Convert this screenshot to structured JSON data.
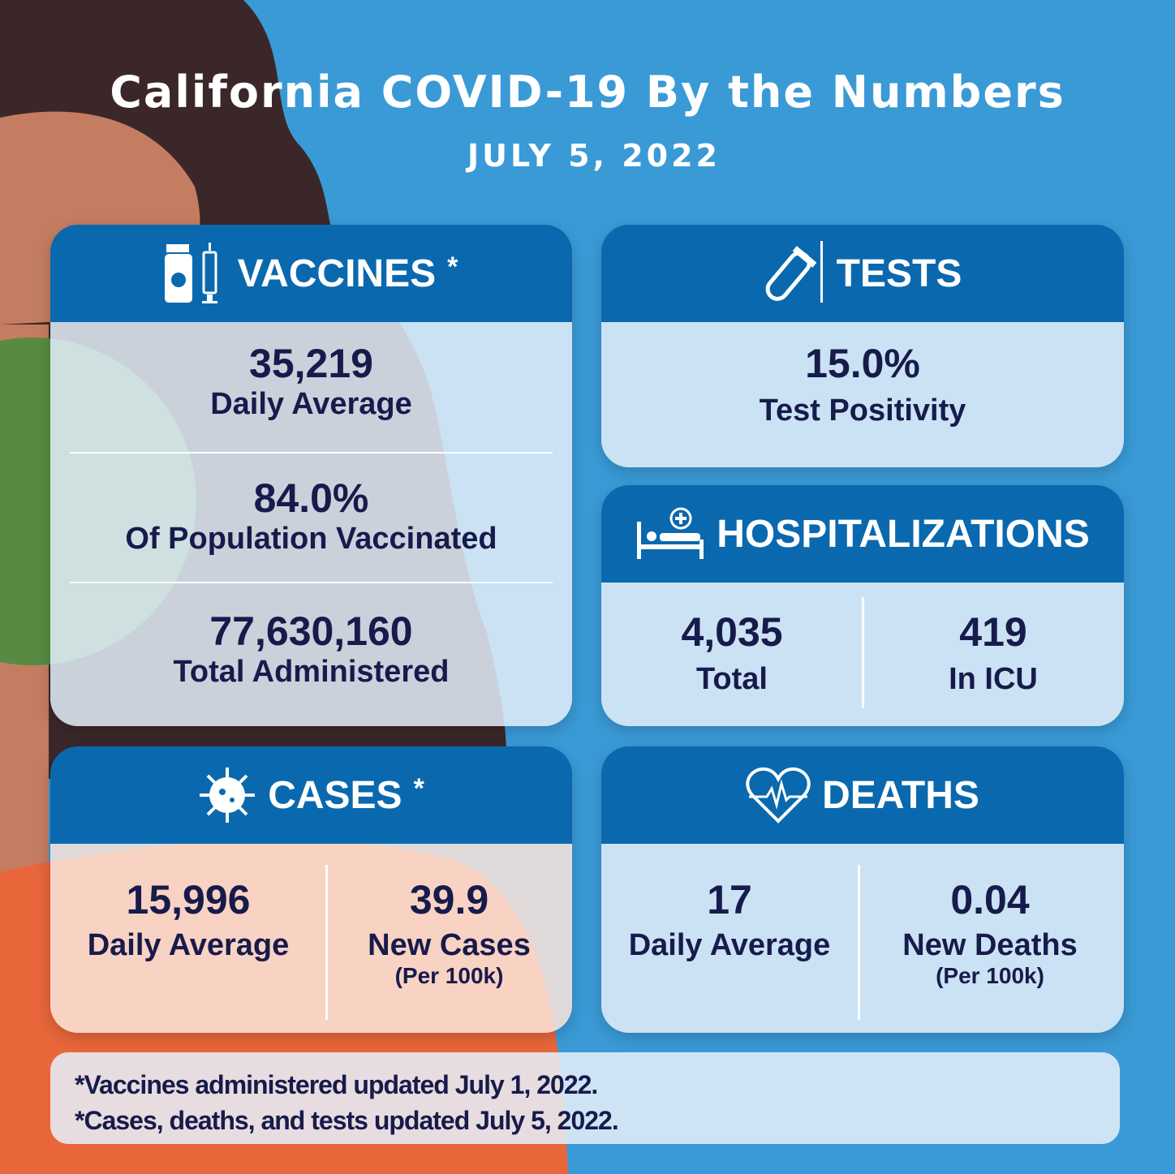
{
  "header": {
    "title": "California COVID-19 By the Numbers",
    "date": "JULY 5, 2022"
  },
  "vaccines": {
    "title": "VACCINES",
    "mark": "*",
    "stats": [
      {
        "value": "35,219",
        "label": "Daily Average"
      },
      {
        "value": "84.0%",
        "label": "Of Population Vaccinated"
      },
      {
        "value": "77,630,160",
        "label": "Total Administered"
      }
    ]
  },
  "tests": {
    "title": "TESTS",
    "stats": [
      {
        "value": "15.0%",
        "label": "Test Positivity"
      }
    ]
  },
  "hospitalizations": {
    "title": "HOSPITALIZATIONS",
    "stats": [
      {
        "value": "4,035",
        "label": "Total"
      },
      {
        "value": "419",
        "label": "In ICU"
      }
    ]
  },
  "cases": {
    "title": "CASES",
    "mark": "*",
    "stats": [
      {
        "value": "15,996",
        "label": "Daily Average"
      },
      {
        "value": "39.9",
        "label": "New Cases",
        "note": "(Per 100k)"
      }
    ]
  },
  "deaths": {
    "title": "DEATHS",
    "stats": [
      {
        "value": "17",
        "label": "Daily Average"
      },
      {
        "value": "0.04",
        "label": "New Deaths",
        "note": "(Per 100k)"
      }
    ]
  },
  "footnotes": [
    "*Vaccines administered updated July 1, 2022.",
    "*Cases, deaths, and tests updated July 5, 2022."
  ]
}
